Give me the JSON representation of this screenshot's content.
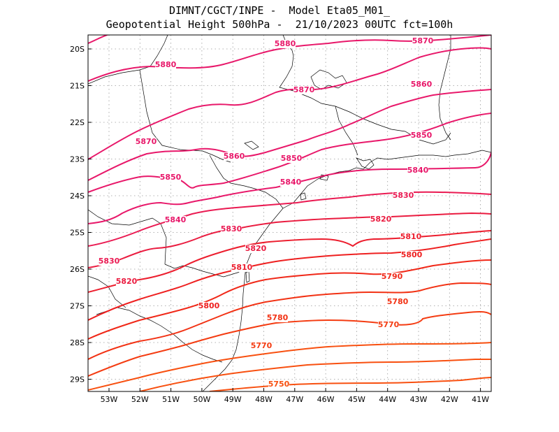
{
  "title": {
    "line1": "DIMNT/CGCT/INPE -  Model Eta05_M01_",
    "line2": "Geopotential Height 500hPa -  21/10/2023 00UTC fct=100h"
  },
  "axes": {
    "lon_ticks": [
      "53W",
      "52W",
      "51W",
      "50W",
      "49W",
      "48W",
      "47W",
      "46W",
      "45W",
      "44W",
      "43W",
      "42W",
      "41W"
    ],
    "lat_ticks": [
      "20S",
      "21S",
      "22S",
      "23S",
      "24S",
      "25S",
      "26S",
      "27S",
      "28S",
      "29S"
    ]
  },
  "contours": [
    {
      "value": 5880,
      "color": "#e8186a",
      "labels": [
        "5880",
        "5880"
      ]
    },
    {
      "value": 5870,
      "color": "#e8186a",
      "labels": [
        "5870",
        "5870",
        "5870"
      ]
    },
    {
      "value": 5860,
      "color": "#e8186a",
      "labels": [
        "5860",
        "5860"
      ]
    },
    {
      "value": 5850,
      "color": "#e8186a",
      "labels": [
        "5850",
        "5850",
        "5850"
      ]
    },
    {
      "value": 5840,
      "color": "#e8186a",
      "labels": [
        "5840",
        "5840",
        "5840"
      ]
    },
    {
      "value": 5830,
      "color": "#ea1a52",
      "labels": [
        "5830",
        "5830",
        "5830"
      ]
    },
    {
      "value": 5820,
      "color": "#ea1c40",
      "labels": [
        "5820",
        "5820",
        "5820"
      ]
    },
    {
      "value": 5810,
      "color": "#ec1e2e",
      "labels": [
        "5810",
        "5810"
      ]
    },
    {
      "value": 5800,
      "color": "#ee2020",
      "labels": [
        "5800",
        "5800"
      ]
    },
    {
      "value": 5790,
      "color": "#f02818",
      "labels": [
        "5790"
      ]
    },
    {
      "value": 5780,
      "color": "#f23214",
      "labels": [
        "5780",
        "5780"
      ]
    },
    {
      "value": 5770,
      "color": "#f43c12",
      "labels": [
        "5770",
        "5770"
      ]
    },
    {
      "value": 5750,
      "color": "#f85010",
      "labels": [
        "5750"
      ]
    }
  ]
}
